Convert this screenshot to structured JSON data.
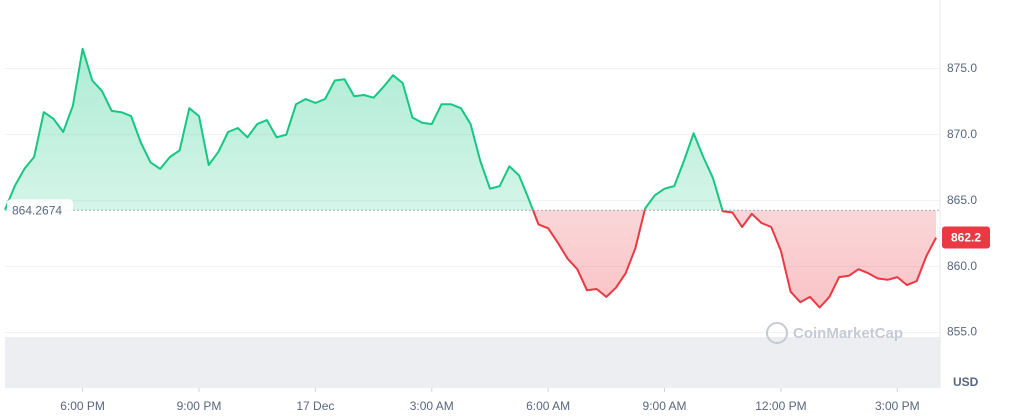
{
  "chart_data": {
    "type": "line",
    "x": [
      16,
      16.25,
      16.5,
      16.75,
      17,
      17.25,
      17.5,
      17.75,
      18,
      18.25,
      18.5,
      18.75,
      19,
      19.25,
      19.5,
      19.75,
      20,
      20.25,
      20.5,
      20.75,
      21,
      21.25,
      21.5,
      21.75,
      22,
      22.25,
      22.5,
      22.75,
      23,
      23.25,
      23.5,
      23.75,
      24,
      24.25,
      24.5,
      24.75,
      25,
      25.25,
      25.5,
      25.75,
      26,
      26.25,
      26.5,
      26.75,
      27,
      27.25,
      27.5,
      27.75,
      28,
      28.25,
      28.5,
      28.75,
      29,
      29.25,
      29.5,
      29.75,
      30,
      30.25,
      30.5,
      30.75,
      31,
      31.25,
      31.5,
      31.75,
      32,
      32.25,
      32.5,
      32.75,
      33,
      33.25,
      33.5,
      33.75,
      34,
      34.25,
      34.5,
      34.75,
      35,
      35.25,
      35.5,
      35.75,
      36,
      36.25,
      36.5,
      36.75,
      37,
      37.25,
      37.5,
      37.75,
      38,
      38.25,
      38.5,
      38.75,
      39,
      39.25,
      39.5,
      39.75,
      40
    ],
    "series": [
      {
        "name": "Price",
        "color": "#16c784",
        "color_below": "#ea3943",
        "values": [
          864.3,
          866.1,
          867.4,
          868.3,
          871.7,
          871.2,
          870.2,
          872.2,
          876.5,
          874.1,
          873.3,
          871.8,
          871.7,
          871.4,
          869.4,
          867.9,
          867.4,
          868.3,
          868.8,
          872.0,
          871.4,
          867.7,
          868.7,
          870.2,
          870.5,
          869.8,
          870.8,
          871.1,
          869.8,
          870.0,
          872.3,
          872.7,
          872.4,
          872.7,
          874.1,
          874.2,
          872.9,
          873.0,
          872.8,
          873.6,
          874.5,
          873.9,
          871.3,
          870.9,
          870.8,
          872.3,
          872.3,
          872.0,
          870.8,
          868.0,
          865.9,
          866.1,
          867.6,
          866.9,
          865.1,
          863.2,
          862.9,
          861.8,
          860.6,
          859.8,
          858.2,
          858.3,
          857.7,
          858.4,
          859.5,
          861.4,
          864.4,
          865.4,
          865.9,
          866.1,
          868.0,
          870.1,
          868.3,
          866.7,
          864.2,
          864.1,
          863.0,
          864.0,
          863.3,
          863.0,
          861.2,
          858.1,
          857.3,
          857.7,
          856.9,
          857.7,
          859.2,
          859.3,
          859.8,
          859.5,
          859.1,
          859.0,
          859.2,
          858.6,
          858.9,
          860.8,
          862.2
        ]
      }
    ],
    "baseline": 864.2674,
    "last_label": "862.2",
    "xlim": [
      16,
      40.1
    ],
    "xticks": [
      {
        "value": 18,
        "label": "6:00 PM"
      },
      {
        "value": 21,
        "label": "9:00 PM"
      },
      {
        "value": 24,
        "label": "17 Dec"
      },
      {
        "value": 27,
        "label": "3:00 AM"
      },
      {
        "value": 30,
        "label": "6:00 AM"
      },
      {
        "value": 33,
        "label": "9:00 AM"
      },
      {
        "value": 36,
        "label": "12:00 PM"
      },
      {
        "value": 39,
        "label": "3:00 PM"
      }
    ],
    "ylim": [
      850.8,
      880.2
    ],
    "yticks": [
      {
        "value": 855,
        "label": "855.0"
      },
      {
        "value": 860,
        "label": "860.0"
      },
      {
        "value": 865,
        "label": "865.0"
      },
      {
        "value": 870,
        "label": "870.0"
      },
      {
        "value": 875,
        "label": "875.0"
      }
    ],
    "y_unit": "USD",
    "watermark": "CoinMarketCap",
    "grid": true
  }
}
